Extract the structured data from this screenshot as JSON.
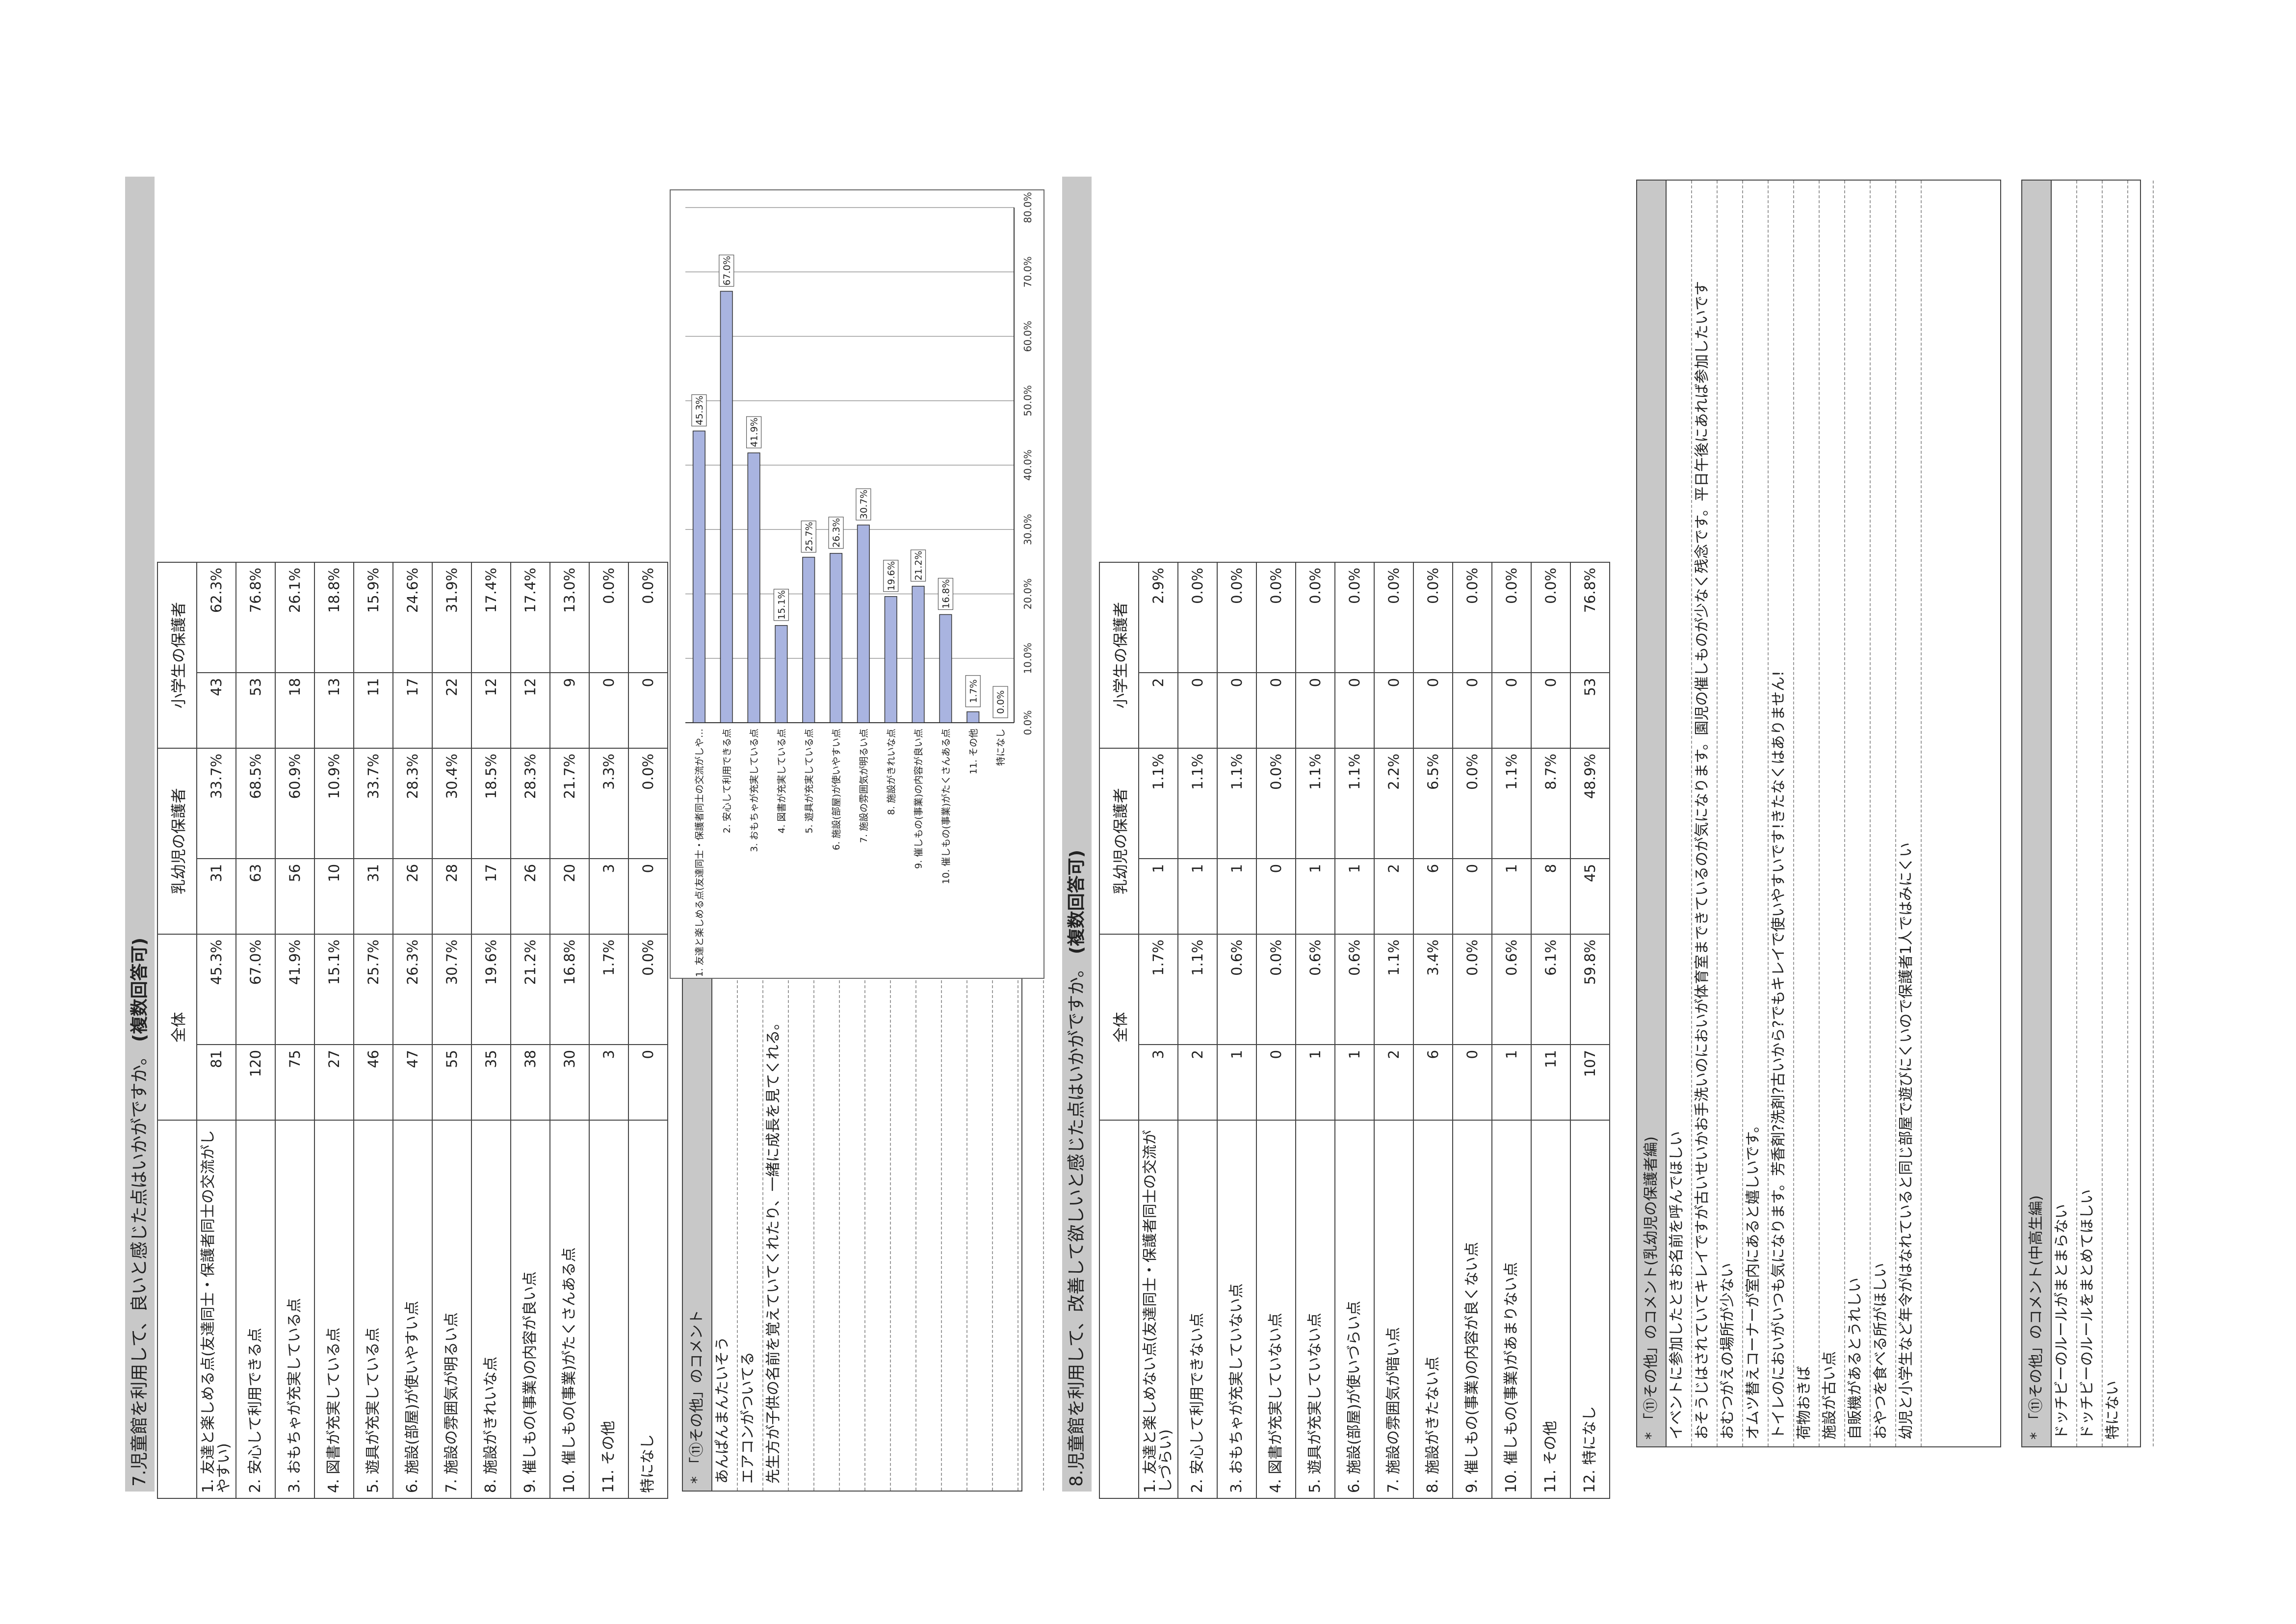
{
  "q7": {
    "title": "7.児童館を利用して、良いと感じた点はいかがですか。",
    "note": "(複数回答可)",
    "headers": {
      "all": "全体",
      "infant": "乳幼児の保護者",
      "elementary": "小学生の保護者"
    },
    "rows": [
      {
        "label": "1. 友達と楽しめる点(友達同士・保護者同士の交流がしやすい)",
        "all_n": "81",
        "all_p": "45.3%",
        "inf_n": "31",
        "inf_p": "33.7%",
        "ele_n": "43",
        "ele_p": "62.3%"
      },
      {
        "label": "2. 安心して利用できる点",
        "all_n": "120",
        "all_p": "67.0%",
        "inf_n": "63",
        "inf_p": "68.5%",
        "ele_n": "53",
        "ele_p": "76.8%"
      },
      {
        "label": "3. おもちゃが充実している点",
        "all_n": "75",
        "all_p": "41.9%",
        "inf_n": "56",
        "inf_p": "60.9%",
        "ele_n": "18",
        "ele_p": "26.1%"
      },
      {
        "label": "4. 図書が充実している点",
        "all_n": "27",
        "all_p": "15.1%",
        "inf_n": "10",
        "inf_p": "10.9%",
        "ele_n": "13",
        "ele_p": "18.8%"
      },
      {
        "label": "5. 遊具が充実している点",
        "all_n": "46",
        "all_p": "25.7%",
        "inf_n": "31",
        "inf_p": "33.7%",
        "ele_n": "11",
        "ele_p": "15.9%"
      },
      {
        "label": "6. 施設(部屋)が使いやすい点",
        "all_n": "47",
        "all_p": "26.3%",
        "inf_n": "26",
        "inf_p": "28.3%",
        "ele_n": "17",
        "ele_p": "24.6%"
      },
      {
        "label": "7. 施設の雰囲気が明るい点",
        "all_n": "55",
        "all_p": "30.7%",
        "inf_n": "28",
        "inf_p": "30.4%",
        "ele_n": "22",
        "ele_p": "31.9%"
      },
      {
        "label": "8. 施設がきれいな点",
        "all_n": "35",
        "all_p": "19.6%",
        "inf_n": "17",
        "inf_p": "18.5%",
        "ele_n": "12",
        "ele_p": "17.4%"
      },
      {
        "label": "9. 催しもの(事業)の内容が良い点",
        "all_n": "38",
        "all_p": "21.2%",
        "inf_n": "26",
        "inf_p": "28.3%",
        "ele_n": "12",
        "ele_p": "17.4%"
      },
      {
        "label": "10. 催しもの(事業)がたくさんある点",
        "all_n": "30",
        "all_p": "16.8%",
        "inf_n": "20",
        "inf_p": "21.7%",
        "ele_n": "9",
        "ele_p": "13.0%"
      },
      {
        "label": "11. その他",
        "all_n": "3",
        "all_p": "1.7%",
        "inf_n": "3",
        "inf_p": "3.3%",
        "ele_n": "0",
        "ele_p": "0.0%"
      },
      {
        "label": "特になし",
        "all_n": "0",
        "all_p": "0.0%",
        "inf_n": "0",
        "inf_p": "0.0%",
        "ele_n": "0",
        "ele_p": "0.0%"
      }
    ]
  },
  "q7_comments": {
    "title": "* 「⑪その他」のコメント",
    "items": [
      "あんぱんまんたいそう",
      "エアコンがついてる",
      "先生方が子供の名前を覚えていてくれたり、一緒に成長を見てくれる。"
    ]
  },
  "chart_data": {
    "type": "bar",
    "orientation": "horizontal",
    "categories": [
      "1. 友達と楽しめる点(友達同士・保護者同士の交流がしや…",
      "2. 安心して利用できる点",
      "3. おもちゃが充実している点",
      "4. 図書が充実している点",
      "5. 遊具が充実している点",
      "6. 施設(部屋)が使いやすい点",
      "7. 施設の雰囲気が明るい点",
      "8. 施設がきれいな点",
      "9. 催しもの(事業)の内容が良い点",
      "10. 催しもの(事業)がたくさんある点",
      "11. その他",
      "特になし"
    ],
    "values": [
      45.3,
      67.0,
      41.9,
      15.1,
      25.7,
      26.3,
      30.7,
      19.6,
      21.2,
      16.8,
      1.7,
      0.0
    ],
    "value_labels": [
      "45.3%",
      "67.0%",
      "41.9%",
      "15.1%",
      "25.7%",
      "26.3%",
      "30.7%",
      "19.6%",
      "21.2%",
      "16.8%",
      "1.7%",
      "0.0%"
    ],
    "xlim": [
      0,
      80
    ],
    "ticks": [
      "0.0%",
      "10.0%",
      "20.0%",
      "30.0%",
      "40.0%",
      "50.0%",
      "60.0%",
      "70.0%",
      "80.0%"
    ],
    "grid": true,
    "bar_color": "#a9b4e0"
  },
  "q8": {
    "title": "8.児童館を利用して、改善して欲しいと感じた点はいかがですか。",
    "note": "(複数回答可)",
    "headers": {
      "all": "全体",
      "infant": "乳幼児の保護者",
      "elementary": "小学生の保護者"
    },
    "rows": [
      {
        "label": "1. 友達と楽しめない点(友達同士・保護者同士の交流がしづらい)",
        "all_n": "3",
        "all_p": "1.7%",
        "inf_n": "1",
        "inf_p": "1.1%",
        "ele_n": "2",
        "ele_p": "2.9%"
      },
      {
        "label": "2. 安心して利用できない点",
        "all_n": "2",
        "all_p": "1.1%",
        "inf_n": "1",
        "inf_p": "1.1%",
        "ele_n": "0",
        "ele_p": "0.0%"
      },
      {
        "label": "3. おもちゃが充実していない点",
        "all_n": "1",
        "all_p": "0.6%",
        "inf_n": "1",
        "inf_p": "1.1%",
        "ele_n": "0",
        "ele_p": "0.0%"
      },
      {
        "label": "4. 図書が充実していない点",
        "all_n": "0",
        "all_p": "0.0%",
        "inf_n": "0",
        "inf_p": "0.0%",
        "ele_n": "0",
        "ele_p": "0.0%"
      },
      {
        "label": "5. 遊具が充実していない点",
        "all_n": "1",
        "all_p": "0.6%",
        "inf_n": "1",
        "inf_p": "1.1%",
        "ele_n": "0",
        "ele_p": "0.0%"
      },
      {
        "label": "6. 施設(部屋)が使いづらい点",
        "all_n": "1",
        "all_p": "0.6%",
        "inf_n": "1",
        "inf_p": "1.1%",
        "ele_n": "0",
        "ele_p": "0.0%"
      },
      {
        "label": "7. 施設の雰囲気が暗い点",
        "all_n": "2",
        "all_p": "1.1%",
        "inf_n": "2",
        "inf_p": "2.2%",
        "ele_n": "0",
        "ele_p": "0.0%"
      },
      {
        "label": "8. 施設がきたない点",
        "all_n": "6",
        "all_p": "3.4%",
        "inf_n": "6",
        "inf_p": "6.5%",
        "ele_n": "0",
        "ele_p": "0.0%"
      },
      {
        "label": "9. 催しもの(事業)の内容が良くない点",
        "all_n": "0",
        "all_p": "0.0%",
        "inf_n": "0",
        "inf_p": "0.0%",
        "ele_n": "0",
        "ele_p": "0.0%"
      },
      {
        "label": "10. 催しもの(事業)があまりない点",
        "all_n": "1",
        "all_p": "0.6%",
        "inf_n": "1",
        "inf_p": "1.1%",
        "ele_n": "0",
        "ele_p": "0.0%"
      },
      {
        "label": "11. その他",
        "all_n": "11",
        "all_p": "6.1%",
        "inf_n": "8",
        "inf_p": "8.7%",
        "ele_n": "0",
        "ele_p": "0.0%"
      },
      {
        "label": "12. 特になし",
        "all_n": "107",
        "all_p": "59.8%",
        "inf_n": "45",
        "inf_p": "48.9%",
        "ele_n": "53",
        "ele_p": "76.8%"
      }
    ]
  },
  "q8_infant_comments": {
    "title": "* 「⑪その他」のコメント(乳幼児の保護者編)",
    "items": [
      "イベントに参加したときお名前を呼んでほしい",
      "おそうじはされていてキレイですが古いせいかお手洗いのにおいが体育室まできているのが気になります。園児の催しものが少なく残念です。平日午後にあれば参加したいです",
      "おむつがえの場所が少ない",
      "オムツ替えコーナーが室内にあると嬉しいです。",
      "トイレのにおいがいつも気になります。芳香剤?洗剤?古いから?でもキレイで使いやすいです!きたなくはありません!",
      "荷物おきば",
      "施設が古い点",
      "自販機があるとうれしい",
      "おやつを食べる所がほしい",
      "幼児と小学生など年令がはなれていると同じ部屋で遊びにくいので保護者1人ではみにくい"
    ]
  },
  "q8_middle_comments": {
    "title": "* 「⑪その他」のコメント(中高生編)",
    "items": [
      "ドッチビーのルールがまとまらない",
      "ドッチビーのルールをまとめてほしい",
      "特にない"
    ]
  }
}
